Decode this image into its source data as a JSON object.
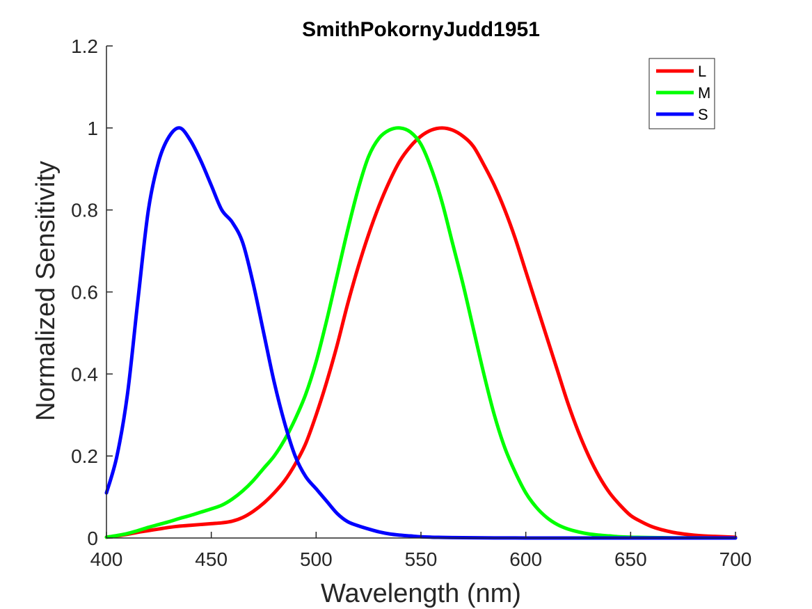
{
  "chart_data": {
    "type": "line",
    "title": "SmithPokornyJudd1951",
    "xlabel": "Wavelength (nm)",
    "ylabel": "Normalized Sensitivity",
    "xlim": [
      400,
      700
    ],
    "ylim": [
      0,
      1.2
    ],
    "xticks": [
      "400",
      "450",
      "500",
      "550",
      "600",
      "650",
      "700"
    ],
    "yticks": [
      "0",
      "0.2",
      "0.4",
      "0.6",
      "0.8",
      "1",
      "1.2"
    ],
    "grid": false,
    "legend_position": "top-right",
    "x": [
      400,
      405,
      410,
      415,
      420,
      425,
      430,
      435,
      440,
      445,
      450,
      455,
      460,
      465,
      470,
      475,
      480,
      485,
      490,
      495,
      500,
      505,
      510,
      515,
      520,
      525,
      530,
      535,
      540,
      545,
      550,
      555,
      560,
      565,
      570,
      575,
      580,
      585,
      590,
      595,
      600,
      605,
      610,
      615,
      620,
      625,
      630,
      635,
      640,
      645,
      650,
      655,
      660,
      665,
      670,
      675,
      680,
      685,
      690,
      695,
      700
    ],
    "series": [
      {
        "name": "L",
        "color": "#ff0000",
        "values": [
          0.002,
          0.005,
          0.009,
          0.014,
          0.018,
          0.022,
          0.026,
          0.029,
          0.031,
          0.033,
          0.035,
          0.037,
          0.041,
          0.05,
          0.065,
          0.085,
          0.11,
          0.14,
          0.18,
          0.23,
          0.3,
          0.38,
          0.47,
          0.57,
          0.66,
          0.74,
          0.81,
          0.87,
          0.92,
          0.955,
          0.98,
          0.995,
          1.0,
          0.995,
          0.98,
          0.955,
          0.91,
          0.86,
          0.8,
          0.73,
          0.65,
          0.57,
          0.49,
          0.41,
          0.33,
          0.26,
          0.2,
          0.15,
          0.11,
          0.08,
          0.055,
          0.04,
          0.028,
          0.02,
          0.014,
          0.01,
          0.007,
          0.005,
          0.004,
          0.003,
          0.002
        ]
      },
      {
        "name": "M",
        "color": "#00ff00",
        "values": [
          0.002,
          0.006,
          0.011,
          0.018,
          0.026,
          0.033,
          0.04,
          0.048,
          0.055,
          0.063,
          0.071,
          0.08,
          0.095,
          0.115,
          0.14,
          0.17,
          0.2,
          0.24,
          0.29,
          0.35,
          0.43,
          0.53,
          0.64,
          0.75,
          0.85,
          0.93,
          0.975,
          0.995,
          1.0,
          0.99,
          0.96,
          0.9,
          0.82,
          0.72,
          0.62,
          0.51,
          0.4,
          0.3,
          0.22,
          0.16,
          0.11,
          0.075,
          0.05,
          0.033,
          0.022,
          0.015,
          0.01,
          0.007,
          0.005,
          0.003,
          0.002,
          0.0015,
          0.001,
          0.0008,
          0.0005,
          0.0004,
          0.0003,
          0.0002,
          0.0001,
          0.0001,
          0.0001
        ]
      },
      {
        "name": "S",
        "color": "#0000ff",
        "values": [
          0.11,
          0.2,
          0.35,
          0.58,
          0.8,
          0.92,
          0.98,
          1.0,
          0.97,
          0.92,
          0.86,
          0.8,
          0.77,
          0.72,
          0.62,
          0.5,
          0.38,
          0.28,
          0.2,
          0.15,
          0.12,
          0.09,
          0.06,
          0.04,
          0.03,
          0.022,
          0.015,
          0.01,
          0.007,
          0.005,
          0.003,
          0.002,
          0.0015,
          0.001,
          0.0008,
          0.0006,
          0.0004,
          0.0003,
          0.0002,
          0.0002,
          0.0001,
          0.0001,
          0.0001,
          0.0001,
          0.0001,
          0.0001,
          0.0001,
          0.0001,
          0.0001,
          0.0001,
          0.0001,
          0.0001,
          0.0001,
          0.0001,
          0.0001,
          0.0001,
          0.0001,
          0.0001,
          0.0001,
          0.0001,
          0.0001
        ]
      }
    ]
  }
}
